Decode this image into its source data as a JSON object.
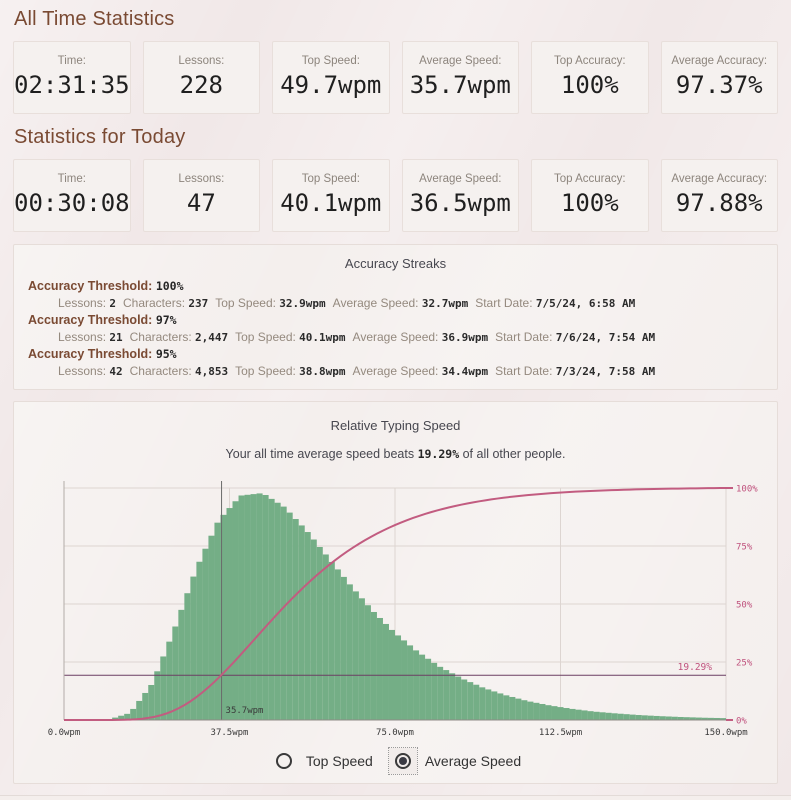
{
  "all_time": {
    "heading": "All Time Statistics",
    "stats": [
      {
        "label": "Time:",
        "value": "02:31:35"
      },
      {
        "label": "Lessons:",
        "value": "228"
      },
      {
        "label": "Top Speed:",
        "value": "49.7wpm"
      },
      {
        "label": "Average Speed:",
        "value": "35.7wpm"
      },
      {
        "label": "Top Accuracy:",
        "value": "100%"
      },
      {
        "label": "Average Accuracy:",
        "value": "97.37%"
      }
    ]
  },
  "today": {
    "heading": "Statistics for Today",
    "stats": [
      {
        "label": "Time:",
        "value": "00:30:08"
      },
      {
        "label": "Lessons:",
        "value": "47"
      },
      {
        "label": "Top Speed:",
        "value": "40.1wpm"
      },
      {
        "label": "Average Speed:",
        "value": "36.5wpm"
      },
      {
        "label": "Top Accuracy:",
        "value": "100%"
      },
      {
        "label": "Average Accuracy:",
        "value": "97.88%"
      }
    ]
  },
  "accuracy_streaks": {
    "title": "Accuracy Streaks",
    "streaks": [
      {
        "threshold_label": "Accuracy Threshold:",
        "threshold": "100%",
        "fields": [
          {
            "label": "Lessons:",
            "value": "2"
          },
          {
            "label": "Characters:",
            "value": "237"
          },
          {
            "label": "Top Speed:",
            "value": "32.9wpm"
          },
          {
            "label": "Average Speed:",
            "value": "32.7wpm"
          },
          {
            "label": "Start Date:",
            "value": "7/5/24, 6:58 AM"
          }
        ]
      },
      {
        "threshold_label": "Accuracy Threshold:",
        "threshold": "97%",
        "fields": [
          {
            "label": "Lessons:",
            "value": "21"
          },
          {
            "label": "Characters:",
            "value": "2,447"
          },
          {
            "label": "Top Speed:",
            "value": "40.1wpm"
          },
          {
            "label": "Average Speed:",
            "value": "36.9wpm"
          },
          {
            "label": "Start Date:",
            "value": "7/6/24, 7:54 AM"
          }
        ]
      },
      {
        "threshold_label": "Accuracy Threshold:",
        "threshold": "95%",
        "fields": [
          {
            "label": "Lessons:",
            "value": "42"
          },
          {
            "label": "Characters:",
            "value": "4,853"
          },
          {
            "label": "Top Speed:",
            "value": "38.8wpm"
          },
          {
            "label": "Average Speed:",
            "value": "34.4wpm"
          },
          {
            "label": "Start Date:",
            "value": "7/3/24, 7:58 AM"
          }
        ]
      }
    ]
  },
  "chart": {
    "title": "Relative Typing Speed",
    "subtitle_prefix": "Your all time average speed beats ",
    "subtitle_value": "19.29%",
    "subtitle_suffix": " of all other people.",
    "controls": [
      {
        "label": "Top Speed",
        "selected": false
      },
      {
        "label": "Average Speed",
        "selected": true
      }
    ]
  },
  "chart_data": {
    "type": "histogram+cdf",
    "title": "Relative Typing Speed",
    "xlabel_unit": "wpm",
    "xlim": [
      0,
      150
    ],
    "ylim_percent": [
      0,
      100
    ],
    "x_ticks": [
      "0.0wpm",
      "37.5wpm",
      "75.0wpm",
      "112.5wpm",
      "150.0wpm"
    ],
    "x_tick_values": [
      0,
      37.5,
      75,
      112.5,
      150
    ],
    "y_right_ticks": [
      "100%",
      "75%",
      "50%",
      "25%",
      "0%"
    ],
    "y_right_values": [
      100,
      75,
      50,
      25,
      0
    ],
    "marker_wpm": 35.7,
    "marker_label": "35.7wpm",
    "percentile": 19.29,
    "percentile_label": "19.29%",
    "density_x_start": 0,
    "density_x_step": 5,
    "density_relative": [
      0,
      0,
      0.1,
      3.1,
      15.9,
      39.7,
      66.4,
      87.3,
      98.2,
      99.3,
      93.1,
      82.8,
      70.8,
      58.8,
      47.7,
      38.1,
      30.1,
      23.5,
      18.3,
      14.1,
      10.9,
      8.3,
      6.4,
      4.9,
      3.7,
      2.9,
      2.2,
      1.7,
      1.3,
      1.0,
      0.8
    ],
    "colors": {
      "histogram": "#74ae86",
      "cdf_line": "#c25c80",
      "axis_labels_right": "#c0537e",
      "percentile_line": "#6b3e63",
      "marker_line": "#6a6a6a",
      "grid": "#ddd5d1",
      "axis": "#8f8a86",
      "x_labels": "#3a3a3a"
    }
  }
}
